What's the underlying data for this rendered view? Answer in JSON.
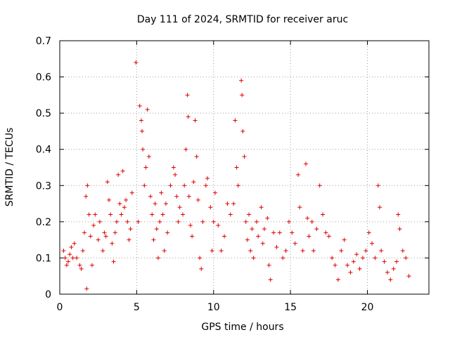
{
  "chart_data": {
    "type": "scatter",
    "title": "Day 111 of 2024, SRMTID for receiver aruc",
    "xlabel": "GPS time / hours",
    "ylabel": "SRMTID / TECUs",
    "xlim": [
      0,
      24
    ],
    "ylim": [
      0,
      0.7
    ],
    "x_ticks": [
      0,
      5,
      10,
      15,
      20
    ],
    "x_tick_labels": [
      "0",
      "5",
      "10",
      "15",
      "20"
    ],
    "y_ticks": [
      0,
      0.1,
      0.2,
      0.3,
      0.4,
      0.5,
      0.6,
      0.7
    ],
    "y_tick_labels": [
      "0",
      "0.1",
      "0.2",
      "0.3",
      "0.4",
      "0.5",
      "0.6",
      "0.7"
    ],
    "grid": true,
    "marker": "plus",
    "color": "#e00000",
    "series": [
      {
        "name": "SRMTID",
        "points": [
          [
            0.25,
            0.12
          ],
          [
            0.35,
            0.1
          ],
          [
            0.45,
            0.08
          ],
          [
            0.55,
            0.09
          ],
          [
            0.65,
            0.11
          ],
          [
            0.75,
            0.13
          ],
          [
            0.85,
            0.1
          ],
          [
            0.95,
            0.14
          ],
          [
            1.1,
            0.1
          ],
          [
            1.3,
            0.08
          ],
          [
            1.4,
            0.07
          ],
          [
            1.5,
            0.12
          ],
          [
            1.6,
            0.17
          ],
          [
            1.7,
            0.27
          ],
          [
            1.8,
            0.3
          ],
          [
            1.9,
            0.22
          ],
          [
            1.75,
            0.015
          ],
          [
            2.0,
            0.16
          ],
          [
            2.1,
            0.08
          ],
          [
            2.2,
            0.19
          ],
          [
            2.3,
            0.22
          ],
          [
            2.5,
            0.15
          ],
          [
            2.6,
            0.2
          ],
          [
            2.8,
            0.12
          ],
          [
            2.9,
            0.17
          ],
          [
            3.0,
            0.16
          ],
          [
            3.1,
            0.31
          ],
          [
            3.2,
            0.26
          ],
          [
            3.3,
            0.22
          ],
          [
            3.4,
            0.14
          ],
          [
            3.5,
            0.09
          ],
          [
            3.6,
            0.17
          ],
          [
            3.7,
            0.2
          ],
          [
            3.8,
            0.33
          ],
          [
            3.9,
            0.25
          ],
          [
            4.0,
            0.22
          ],
          [
            4.1,
            0.34
          ],
          [
            4.2,
            0.24
          ],
          [
            4.3,
            0.26
          ],
          [
            4.4,
            0.2
          ],
          [
            4.5,
            0.15
          ],
          [
            4.6,
            0.18
          ],
          [
            4.7,
            0.28
          ],
          [
            4.95,
            0.64
          ],
          [
            5.1,
            0.2
          ],
          [
            5.2,
            0.52
          ],
          [
            5.3,
            0.48
          ],
          [
            5.35,
            0.45
          ],
          [
            5.4,
            0.4
          ],
          [
            5.5,
            0.3
          ],
          [
            5.6,
            0.35
          ],
          [
            5.7,
            0.51
          ],
          [
            5.8,
            0.38
          ],
          [
            5.9,
            0.27
          ],
          [
            6.0,
            0.22
          ],
          [
            6.1,
            0.15
          ],
          [
            6.2,
            0.25
          ],
          [
            6.3,
            0.18
          ],
          [
            6.4,
            0.1
          ],
          [
            6.5,
            0.2
          ],
          [
            6.6,
            0.28
          ],
          [
            6.7,
            0.22
          ],
          [
            6.8,
            0.12
          ],
          [
            6.9,
            0.25
          ],
          [
            7.0,
            0.17
          ],
          [
            7.2,
            0.3
          ],
          [
            7.4,
            0.35
          ],
          [
            7.5,
            0.33
          ],
          [
            7.6,
            0.27
          ],
          [
            7.7,
            0.2
          ],
          [
            7.8,
            0.24
          ],
          [
            8.0,
            0.22
          ],
          [
            8.1,
            0.3
          ],
          [
            8.2,
            0.4
          ],
          [
            8.3,
            0.55
          ],
          [
            8.35,
            0.49
          ],
          [
            8.4,
            0.27
          ],
          [
            8.5,
            0.19
          ],
          [
            8.6,
            0.16
          ],
          [
            8.7,
            0.31
          ],
          [
            8.8,
            0.48
          ],
          [
            8.9,
            0.38
          ],
          [
            9.0,
            0.26
          ],
          [
            9.1,
            0.1
          ],
          [
            9.2,
            0.07
          ],
          [
            9.3,
            0.2
          ],
          [
            9.5,
            0.3
          ],
          [
            9.6,
            0.32
          ],
          [
            9.8,
            0.24
          ],
          [
            9.9,
            0.12
          ],
          [
            10.0,
            0.2
          ],
          [
            10.1,
            0.28
          ],
          [
            10.3,
            0.19
          ],
          [
            10.5,
            0.12
          ],
          [
            10.7,
            0.16
          ],
          [
            10.9,
            0.25
          ],
          [
            11.1,
            0.22
          ],
          [
            11.3,
            0.25
          ],
          [
            11.4,
            0.48
          ],
          [
            11.5,
            0.35
          ],
          [
            11.6,
            0.3
          ],
          [
            11.8,
            0.59
          ],
          [
            11.85,
            0.55
          ],
          [
            11.9,
            0.45
          ],
          [
            12.0,
            0.38
          ],
          [
            12.1,
            0.2
          ],
          [
            12.2,
            0.15
          ],
          [
            12.3,
            0.22
          ],
          [
            12.4,
            0.12
          ],
          [
            12.5,
            0.18
          ],
          [
            12.6,
            0.1
          ],
          [
            12.8,
            0.2
          ],
          [
            12.9,
            0.16
          ],
          [
            13.1,
            0.24
          ],
          [
            13.2,
            0.14
          ],
          [
            13.3,
            0.18
          ],
          [
            13.5,
            0.21
          ],
          [
            13.6,
            0.08
          ],
          [
            13.7,
            0.04
          ],
          [
            13.9,
            0.17
          ],
          [
            14.1,
            0.13
          ],
          [
            14.3,
            0.17
          ],
          [
            14.5,
            0.1
          ],
          [
            14.7,
            0.12
          ],
          [
            14.9,
            0.2
          ],
          [
            15.1,
            0.17
          ],
          [
            15.3,
            0.14
          ],
          [
            15.5,
            0.33
          ],
          [
            15.6,
            0.24
          ],
          [
            15.8,
            0.12
          ],
          [
            16.0,
            0.36
          ],
          [
            16.1,
            0.21
          ],
          [
            16.2,
            0.16
          ],
          [
            16.4,
            0.2
          ],
          [
            16.5,
            0.12
          ],
          [
            16.7,
            0.18
          ],
          [
            16.9,
            0.3
          ],
          [
            17.1,
            0.22
          ],
          [
            17.3,
            0.17
          ],
          [
            17.5,
            0.16
          ],
          [
            17.7,
            0.1
          ],
          [
            17.9,
            0.08
          ],
          [
            18.1,
            0.04
          ],
          [
            18.3,
            0.12
          ],
          [
            18.5,
            0.15
          ],
          [
            18.7,
            0.08
          ],
          [
            18.9,
            0.06
          ],
          [
            19.1,
            0.09
          ],
          [
            19.3,
            0.11
          ],
          [
            19.5,
            0.07
          ],
          [
            19.7,
            0.1
          ],
          [
            19.9,
            0.12
          ],
          [
            20.1,
            0.17
          ],
          [
            20.3,
            0.14
          ],
          [
            20.5,
            0.1
          ],
          [
            20.7,
            0.3
          ],
          [
            20.8,
            0.24
          ],
          [
            20.9,
            0.12
          ],
          [
            21.1,
            0.09
          ],
          [
            21.3,
            0.06
          ],
          [
            21.5,
            0.04
          ],
          [
            21.7,
            0.07
          ],
          [
            21.9,
            0.09
          ],
          [
            22.0,
            0.22
          ],
          [
            22.1,
            0.18
          ],
          [
            22.3,
            0.12
          ],
          [
            22.5,
            0.1
          ],
          [
            22.7,
            0.05
          ]
        ]
      }
    ]
  }
}
